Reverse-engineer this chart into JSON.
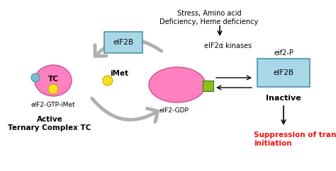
{
  "bg_color": "#ffffff",
  "fig_width": 4.74,
  "fig_height": 2.42,
  "dpi": 100,
  "stress_text": "Stress, Amino acid\nDeficiency, Heme deficiency",
  "eif2b_box1_text": "eIF2B",
  "eif2b_box1_color": "#a8d8e8",
  "eif2b_box1_edge": "#5090a8",
  "tc_color": "#ff80c0",
  "tc_text": "TC",
  "tc_blue_dot_color": "#80b8cc",
  "tc_blue_dot_edge": "#4090a8",
  "imet_label": "iMet",
  "yellow_dot_color": "#f8e020",
  "yellow_dot_edge": "#c8a800",
  "gdp_ellipse_color": "#ff80c0",
  "gdp_ellipse_edge": "#cc5090",
  "green_square_color": "#88c020",
  "green_square_edge": "#507010",
  "cycle_arrow_color": "#b0b0b0",
  "eif2alpha_text": "eIF2α kinases",
  "eif2gdp_text": "eIF2-GDP",
  "eif2gtp_text": "eIF2-GTP-iMet",
  "active_text": "Active\nTernary Complex TC",
  "eif2p_text": "eif2-P",
  "eif2b_box2_text": "eIF2B",
  "eif2b_box2_color": "#a8d8e8",
  "eif2b_box2_edge": "#5090a8",
  "inactive_text": "Inactive",
  "suppression_text": "Suppression of translation\ninitiation",
  "suppression_color": "#ee1111"
}
